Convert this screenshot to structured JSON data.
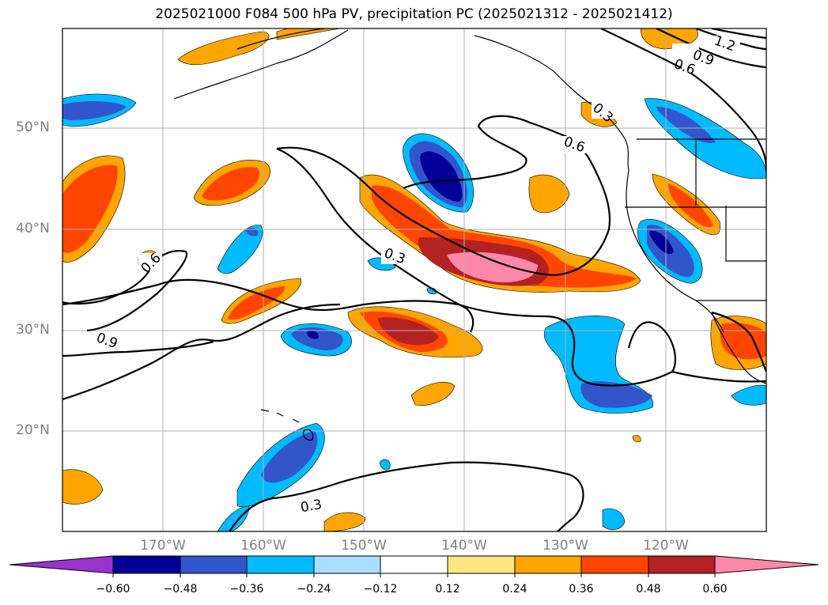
{
  "title": "2025021000 F084 500 hPa PV, precipitation PC (2025021312 - 2025021412)",
  "lat_labels": [
    "50°N",
    "40°N",
    "30°N",
    "20°N"
  ],
  "lon_labels": [
    "170°W",
    "160°W",
    "150°W",
    "140°W",
    "130°W",
    "120°W"
  ],
  "contour_labels": [
    "0.3",
    "0.6",
    "0.9",
    "1.2",
    "0.6",
    "0.3",
    "0.6",
    "0.9",
    "0.3"
  ],
  "colorbar": {
    "ticks": [
      "−0.60",
      "−0.48",
      "−0.36",
      "−0.24",
      "−0.12",
      "0.12",
      "0.24",
      "0.36",
      "0.48",
      "0.60"
    ],
    "colors": [
      "#9933cc",
      "#000099",
      "#3355cc",
      "#00bbff",
      "#aaddff",
      "#ffffff",
      "#ffe680",
      "#ffa500",
      "#ff4500",
      "#b22222",
      "#ff88aa"
    ]
  }
}
